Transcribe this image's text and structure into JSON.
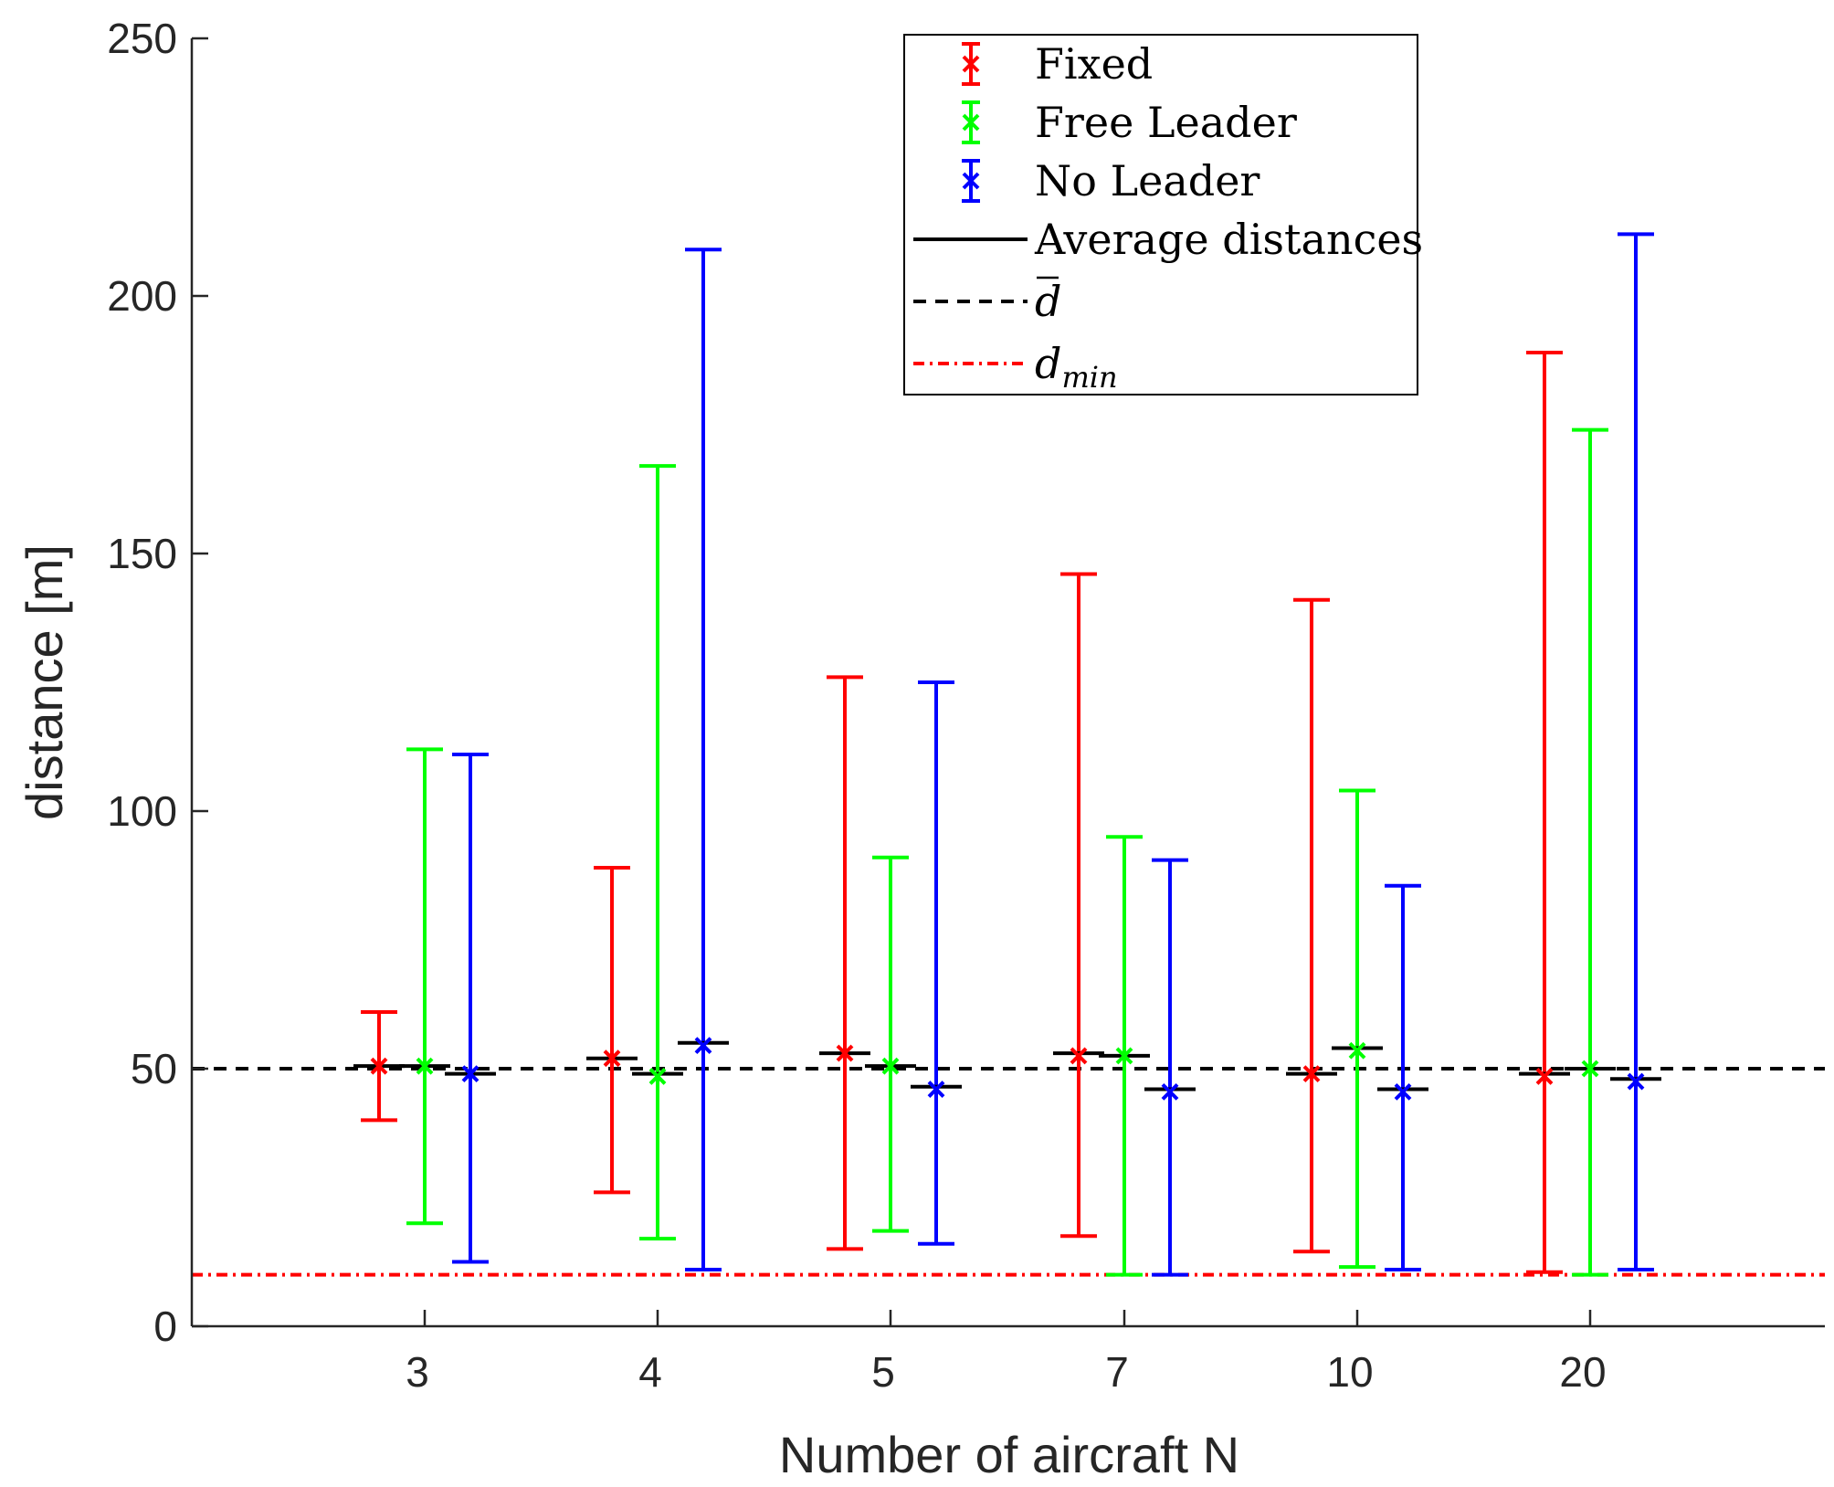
{
  "chart_data": {
    "type": "errorbar",
    "title": "",
    "xlabel": "Number of aircraft N",
    "ylabel": "distance [m]",
    "ylim": [
      0,
      250
    ],
    "yticks": [
      0,
      50,
      100,
      150,
      200,
      250
    ],
    "categories": [
      "3",
      "4",
      "5",
      "7",
      "10",
      "20"
    ],
    "series": [
      {
        "name": "Fixed",
        "color": "#ff0000",
        "marker": "x",
        "mean": [
          50.5,
          52,
          53,
          52.5,
          49,
          48.5
        ],
        "avg": [
          50.5,
          52,
          53,
          53,
          49,
          49
        ],
        "low": [
          40,
          26,
          15,
          17.5,
          14.5,
          10.5
        ],
        "high": [
          61,
          89,
          126,
          146,
          141,
          189
        ]
      },
      {
        "name": "Free Leader",
        "color": "#00ff00",
        "marker": "x",
        "mean": [
          50.5,
          48.5,
          50.5,
          52.5,
          53.5,
          50
        ],
        "avg": [
          50.5,
          49,
          50.5,
          52.5,
          54,
          50
        ],
        "low": [
          20,
          17,
          18.5,
          10,
          11.5,
          10
        ],
        "high": [
          112,
          167,
          91,
          95,
          104,
          174
        ]
      },
      {
        "name": "No Leader",
        "color": "#0000ff",
        "marker": "x",
        "mean": [
          49,
          54.5,
          46,
          45.5,
          45.5,
          47.5
        ],
        "avg": [
          49,
          55,
          46.5,
          46,
          46,
          48
        ],
        "low": [
          12.5,
          11,
          16,
          10,
          11,
          11
        ],
        "high": [
          111,
          209,
          125,
          90.5,
          85.5,
          212
        ]
      }
    ],
    "reference_lines": [
      {
        "name": "d_bar",
        "value": 50,
        "color": "#000000",
        "style": "dashed"
      },
      {
        "name": "d_min",
        "value": 10,
        "color": "#ff0000",
        "style": "dashdot"
      }
    ],
    "legend": {
      "position": "top-center",
      "entries": [
        {
          "kind": "errorbar",
          "text": "Fixed",
          "color": "#ff0000"
        },
        {
          "kind": "errorbar",
          "text": "Free Leader",
          "color": "#00ff00"
        },
        {
          "kind": "errorbar",
          "text": "No Leader",
          "color": "#0000ff"
        },
        {
          "kind": "solid",
          "text": "Average distances",
          "color": "#000000"
        },
        {
          "kind": "dashed",
          "text": "d",
          "color": "#000000",
          "overbar": true
        },
        {
          "kind": "dashdot",
          "text": "d",
          "sub": "min",
          "color": "#ff0000"
        }
      ]
    }
  }
}
